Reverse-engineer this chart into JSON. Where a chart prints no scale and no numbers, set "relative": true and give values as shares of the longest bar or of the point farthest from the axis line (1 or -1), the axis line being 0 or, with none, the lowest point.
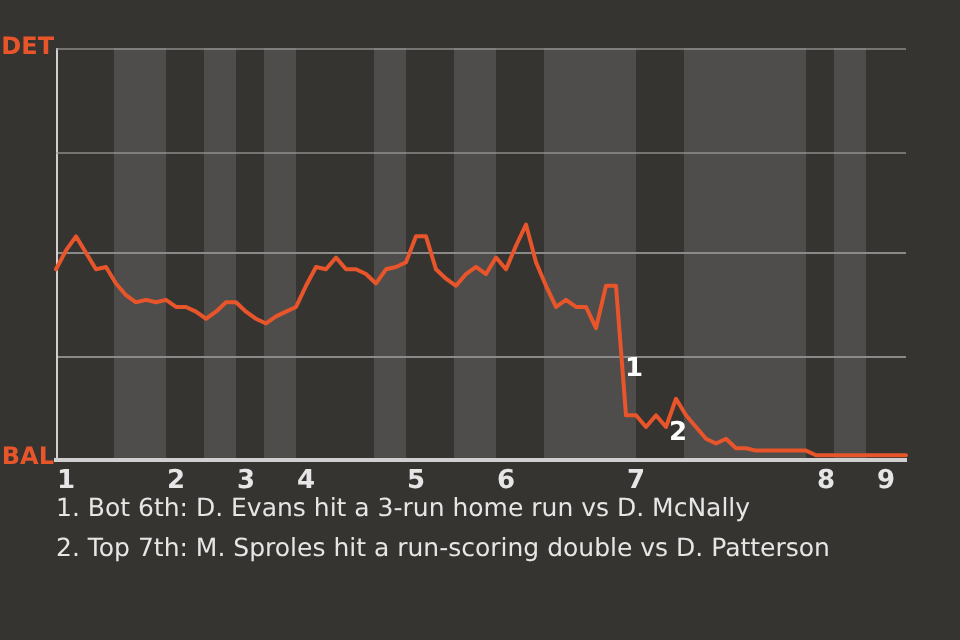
{
  "chart_data": {
    "type": "line",
    "categories": [
      null,
      "1",
      null,
      null,
      null,
      null,
      null,
      null,
      null,
      null,
      null,
      null,
      "2",
      null,
      null,
      null,
      null,
      null,
      null,
      "3",
      null,
      null,
      null,
      null,
      null,
      "4",
      null,
      null,
      null,
      null,
      null,
      null,
      null,
      null,
      null,
      null,
      "5",
      null,
      null,
      null,
      null,
      null,
      null,
      null,
      null,
      "6",
      null,
      null,
      null,
      null,
      null,
      null,
      null,
      null,
      null,
      null,
      null,
      null,
      "7",
      null,
      null,
      null,
      null,
      null,
      null,
      null,
      null,
      null,
      null,
      null,
      null,
      null,
      null,
      null,
      null,
      null,
      null,
      "8",
      null,
      null,
      null,
      null,
      null,
      "9",
      null,
      null
    ],
    "series": [
      {
        "color": "#e8552a",
        "values": [
          0.81,
          0.89,
          0.95,
          0.88,
          0.81,
          0.82,
          0.75,
          0.7,
          0.67,
          0.68,
          0.67,
          0.68,
          0.65,
          0.65,
          0.63,
          0.6,
          0.63,
          0.67,
          0.67,
          0.63,
          0.6,
          0.58,
          0.61,
          0.63,
          0.65,
          0.74,
          0.82,
          0.81,
          0.86,
          0.81,
          0.81,
          0.79,
          0.75,
          0.81,
          0.82,
          0.84,
          0.95,
          0.95,
          0.81,
          0.77,
          0.74,
          0.79,
          0.82,
          0.79,
          0.86,
          0.81,
          0.91,
          1,
          0.84,
          0.74,
          0.65,
          0.68,
          0.65,
          0.65,
          0.56,
          0.74,
          0.74,
          0.19,
          0.19,
          0.14,
          0.19,
          0.14,
          0.26,
          0.19,
          0.14,
          0.09,
          0.07,
          0.09,
          0.05,
          0.05,
          0.04,
          0.04,
          0.04,
          0.04,
          0.04,
          0.04,
          0.02,
          0.02,
          0.02,
          0.02,
          0.02,
          0.02,
          0.02,
          0.02,
          0.02,
          0.02
        ]
      }
    ],
    "relative": true,
    "ref_lines": [
      {
        "axis": "y",
        "value": 0.88,
        "color": "#8a8a8a"
      },
      {
        "axis": "y",
        "value": 0.44,
        "color": "#8a8a8a"
      }
    ],
    "legend": false,
    "marker": "none",
    "annotations": [
      "DET",
      "BAL",
      "1",
      "2",
      "1. Bot 6th: D. Evans hit a 3-run home run vs D. McNally",
      "2. Top 7th: M. Sproles hit a run-scoring double vs D. Patterson"
    ]
  }
}
